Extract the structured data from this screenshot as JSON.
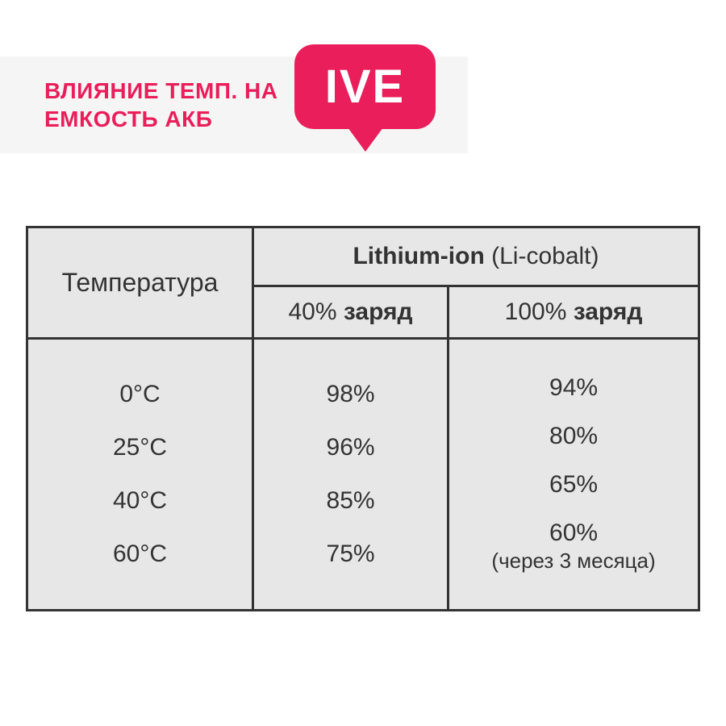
{
  "header": {
    "title_line1": "ВЛИЯНИЕ ТЕМП. НА",
    "title_line2": "ЕМКОСТЬ АКБ",
    "title_color": "#e91e5a",
    "header_bg": "#f5f5f5"
  },
  "logo": {
    "text": "IVE",
    "bg_color": "#e91e5a",
    "text_color": "#ffffff"
  },
  "table": {
    "type": "table",
    "background_color": "#e7e7e7",
    "border_color": "#333333",
    "text_color": "#333333",
    "columns": {
      "temp": "Температура",
      "lithium_bold": "Lithium-ion",
      "lithium_rest": " (Li-cobalt)",
      "charge40_prefix": "40% ",
      "charge40_bold": "заряд",
      "charge100_prefix": "100% ",
      "charge100_bold": "заряд"
    },
    "rows": [
      {
        "temp": "0°C",
        "c40": "98%",
        "c100": "94%",
        "note": ""
      },
      {
        "temp": "25°C",
        "c40": "96%",
        "c100": "80%",
        "note": ""
      },
      {
        "temp": "40°C",
        "c40": "85%",
        "c100": "65%",
        "note": ""
      },
      {
        "temp": "60°C",
        "c40": "75%",
        "c100": "60%",
        "note": "(через 3 месяца)"
      }
    ]
  }
}
